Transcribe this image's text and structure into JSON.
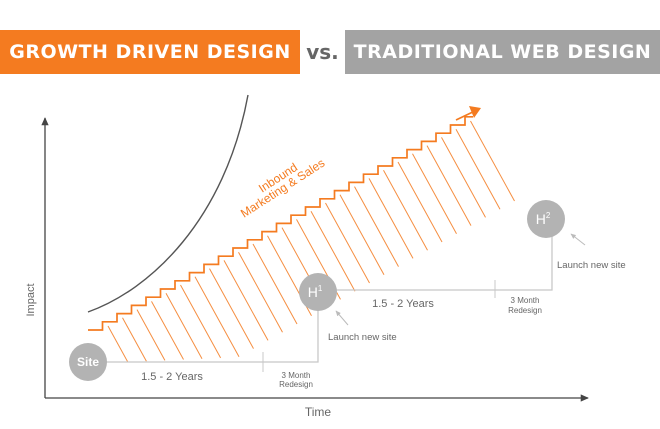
{
  "header": {
    "left_title": "GROWTH DRIVEN DESIGN",
    "vs": "vs.",
    "right_title": "TRADITIONAL WEB DESIGN"
  },
  "colors": {
    "accent": "#f47b20",
    "gray_banner": "#a3a3a3",
    "circle": "#b3b3b3",
    "line_gray": "#c8c8c8",
    "text_gray": "#666666"
  },
  "axes": {
    "y_label": "Impact",
    "x_label": "Time"
  },
  "curve_label": {
    "line1": "Inbound",
    "line2": "Marketing & Sales"
  },
  "nodes": {
    "site": "Site",
    "h1_base": "H",
    "h1_sup": "1",
    "h2_base": "H",
    "h2_sup": "2"
  },
  "annotations": {
    "years_1": "1.5 - 2 Years",
    "redesign_1_line1": "3 Month",
    "redesign_1_line2": "Redesign",
    "launch_1": "Launch new site",
    "years_2": "1.5 - 2 Years",
    "redesign_2_line1": "3 Month",
    "redesign_2_line2": "Redesign",
    "launch_2": "Launch new site"
  }
}
